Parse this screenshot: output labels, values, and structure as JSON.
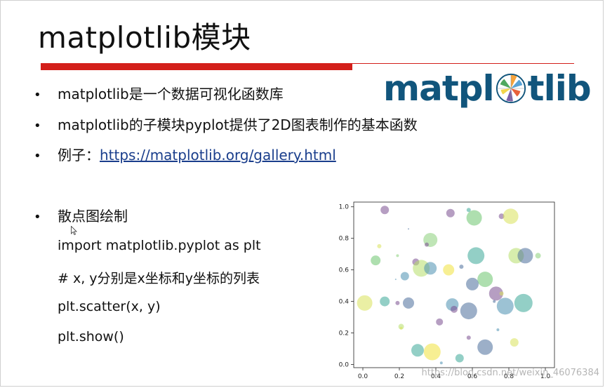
{
  "slide": {
    "title": "matplotlib模块",
    "logo_text_left": "matpl",
    "logo_text_right": "tlib",
    "bullets": [
      {
        "text": "matplotlib是一个数据可视化函数库"
      },
      {
        "text": "matplotlib的子模块pyplot提供了2D图表制作的基本函数"
      },
      {
        "prefix": "例子：",
        "link": "https://matplotlib.org/gallery.html"
      },
      {
        "text": "散点图绘制"
      }
    ],
    "code_lines": [
      "import matplotlib.pyplot as plt",
      "# x, y分别是x坐标和y坐标的列表",
      "plt.scatter(x, y)",
      "plt.show()"
    ],
    "watermark": "https://blog.csdn.net/weixin_46076384",
    "colors": {
      "title_bar": "#d31f1a",
      "logo": "#11557c",
      "link": "#1a3e8c"
    }
  },
  "chart_data": {
    "type": "scatter",
    "xlim": [
      -0.05,
      1.05
    ],
    "ylim": [
      -0.02,
      1.03
    ],
    "xticks": [
      "0.0",
      "0.2",
      "0.4",
      "0.6",
      "0.8",
      "1.0"
    ],
    "yticks": [
      "0.0",
      "0.2",
      "0.4",
      "0.6",
      "0.8",
      "1.0"
    ],
    "grid": false,
    "points": [
      {
        "x": 0.12,
        "y": 0.98,
        "r": 6,
        "c": "#7a4f8f"
      },
      {
        "x": 0.48,
        "y": 0.96,
        "r": 6,
        "c": "#7a4f8f"
      },
      {
        "x": 0.58,
        "y": 0.98,
        "r": 3,
        "c": "#3aa897"
      },
      {
        "x": 0.61,
        "y": 0.93,
        "r": 11,
        "c": "#6cc46e"
      },
      {
        "x": 0.76,
        "y": 0.94,
        "r": 4,
        "c": "#7a4f8f"
      },
      {
        "x": 0.81,
        "y": 0.94,
        "r": 11,
        "c": "#d8e25a"
      },
      {
        "x": 0.25,
        "y": 0.86,
        "r": 1,
        "c": "#4a6e9a"
      },
      {
        "x": 0.37,
        "y": 0.79,
        "r": 10,
        "c": "#8bcf7a"
      },
      {
        "x": 0.35,
        "y": 0.76,
        "r": 3,
        "c": "#7a4f8f"
      },
      {
        "x": 0.09,
        "y": 0.75,
        "r": 3,
        "c": "#d8e25a"
      },
      {
        "x": 0.07,
        "y": 0.66,
        "r": 7,
        "c": "#6cc46e"
      },
      {
        "x": 0.19,
        "y": 0.69,
        "r": 2,
        "c": "#8bcf7a"
      },
      {
        "x": 0.29,
        "y": 0.65,
        "r": 5,
        "c": "#7a4f8f"
      },
      {
        "x": 0.32,
        "y": 0.61,
        "r": 12,
        "c": "#b6de6a"
      },
      {
        "x": 0.37,
        "y": 0.61,
        "r": 9,
        "c": "#4a8fb0"
      },
      {
        "x": 0.23,
        "y": 0.56,
        "r": 6,
        "c": "#4a8fb0"
      },
      {
        "x": 0.47,
        "y": 0.6,
        "r": 8,
        "c": "#f0e23a"
      },
      {
        "x": 0.54,
        "y": 0.62,
        "r": 3,
        "c": "#4a6e9a"
      },
      {
        "x": 0.62,
        "y": 0.69,
        "r": 12,
        "c": "#3aa897"
      },
      {
        "x": 0.84,
        "y": 0.69,
        "r": 11,
        "c": "#b6de6a"
      },
      {
        "x": 0.89,
        "y": 0.69,
        "r": 11,
        "c": "#4a6e9a"
      },
      {
        "x": 0.96,
        "y": 0.69,
        "r": 4,
        "c": "#8bcf7a"
      },
      {
        "x": 0.67,
        "y": 0.54,
        "r": 11,
        "c": "#6cc46e"
      },
      {
        "x": 0.6,
        "y": 0.51,
        "r": 9,
        "c": "#4a6e9a"
      },
      {
        "x": 0.73,
        "y": 0.45,
        "r": 10,
        "c": "#7a4f8f"
      },
      {
        "x": 0.76,
        "y": 0.45,
        "r": 3,
        "c": "#d8e25a"
      },
      {
        "x": 0.18,
        "y": 0.54,
        "r": 1,
        "c": "#4a8fb0"
      },
      {
        "x": 0.01,
        "y": 0.39,
        "r": 11,
        "c": "#d8e25a"
      },
      {
        "x": 0.12,
        "y": 0.4,
        "r": 7,
        "c": "#3aa897"
      },
      {
        "x": 0.19,
        "y": 0.39,
        "r": 3,
        "c": "#7a4f8f"
      },
      {
        "x": 0.25,
        "y": 0.39,
        "r": 8,
        "c": "#4a6e9a"
      },
      {
        "x": 0.49,
        "y": 0.38,
        "r": 9,
        "c": "#4a8fb0"
      },
      {
        "x": 0.5,
        "y": 0.35,
        "r": 5,
        "c": "#7a4f8f"
      },
      {
        "x": 0.58,
        "y": 0.34,
        "r": 12,
        "c": "#4a6e9a"
      },
      {
        "x": 0.72,
        "y": 0.4,
        "r": 2,
        "c": "#4a6e9a"
      },
      {
        "x": 0.78,
        "y": 0.37,
        "r": 12,
        "c": "#4a8fb0"
      },
      {
        "x": 0.88,
        "y": 0.39,
        "r": 13,
        "c": "#3aa897"
      },
      {
        "x": 0.21,
        "y": 0.24,
        "r": 4,
        "c": "#b6de6a"
      },
      {
        "x": 0.21,
        "y": 0.23,
        "r": 2,
        "c": "#d8e25a"
      },
      {
        "x": 0.42,
        "y": 0.27,
        "r": 5,
        "c": "#7a4f8f"
      },
      {
        "x": 0.74,
        "y": 0.22,
        "r": 2,
        "c": "#4a8fb0"
      },
      {
        "x": 0.58,
        "y": 0.17,
        "r": 3,
        "c": "#7a4f8f"
      },
      {
        "x": 0.3,
        "y": 0.09,
        "r": 9,
        "c": "#3aa897"
      },
      {
        "x": 0.38,
        "y": 0.08,
        "r": 12,
        "c": "#f0e23a"
      },
      {
        "x": 0.53,
        "y": 0.04,
        "r": 6,
        "c": "#3aa897"
      },
      {
        "x": 0.67,
        "y": 0.11,
        "r": 11,
        "c": "#4a6e9a"
      },
      {
        "x": 0.83,
        "y": 0.14,
        "r": 6,
        "c": "#d8e25a"
      },
      {
        "x": 0.43,
        "y": 0.01,
        "r": 2,
        "c": "#4a8fb0"
      }
    ]
  }
}
